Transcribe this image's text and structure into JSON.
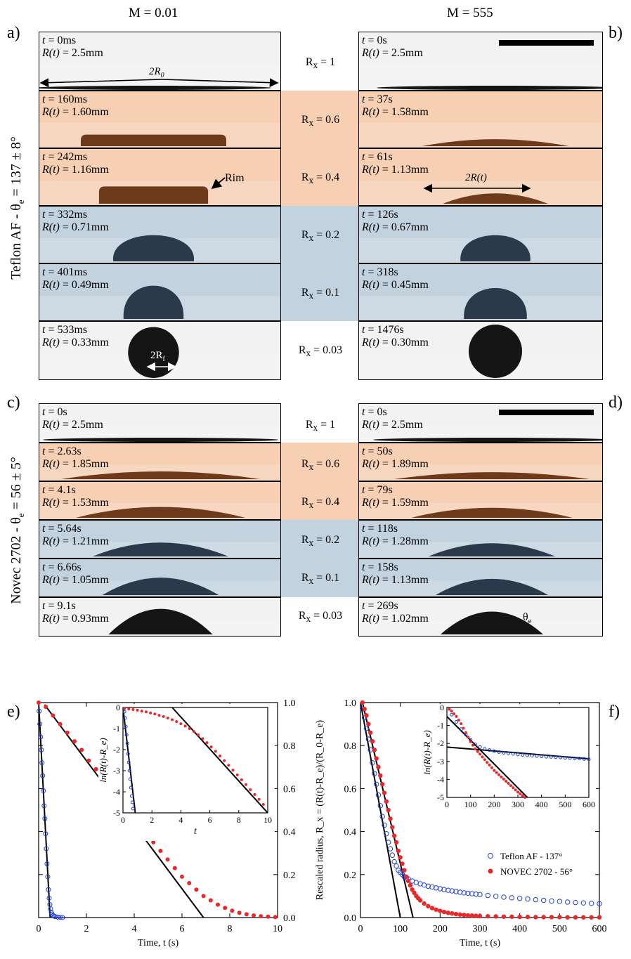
{
  "headers": {
    "left": "M = 0.01",
    "right": "M = 555"
  },
  "panel_labels": {
    "a": "a)",
    "b": "b)",
    "c": "c)",
    "d": "d)",
    "e": "e)",
    "f": "f)"
  },
  "side_labels": {
    "top": "Teflon AF - θ",
    "top_sub": "e",
    "top_tail": " = 137 ± 8°",
    "bottom": "Novec 2702 - θ",
    "bottom_sub": "e",
    "bottom_tail": " = 56 ± 5°"
  },
  "colors": {
    "orange": "#f7cfb3",
    "blue": "#c3d2df",
    "drop_orange": "#6e3a1c",
    "drop_blue": "#2a3a4a",
    "drop_dark": "#151515",
    "open_marker": "#1f3fd8",
    "filled_marker": "#e8282a"
  },
  "rx_top": [
    "R<sub>x</sub> = 1",
    "R<sub>x</sub> = 0.6",
    "R<sub>x</sub> = 0.4",
    "R<sub>x</sub> = 0.2",
    "R<sub>x</sub> = 0.1",
    "R<sub>x</sub> = 0.03"
  ],
  "rx_labels": {
    "r1": "R",
    "r1s": "x",
    "r1v": " = 1",
    "r2": "R",
    "r2s": "x",
    "r2v": " = 0.6",
    "r3": "R",
    "r3s": "x",
    "r3v": " = 0.4",
    "r4": "R",
    "r4s": "x",
    "r4v": " = 0.2",
    "r5": "R",
    "r5s": "x",
    "r5v": " = 0.1",
    "r6": "R",
    "r6s": "x",
    "r6v": " = 0.03"
  },
  "frames": {
    "a": [
      {
        "t": " = 0ms",
        "r": " = 2.5mm"
      },
      {
        "t": " = 160ms",
        "r": " = 1.60mm"
      },
      {
        "t": " = 242ms",
        "r": " = 1.16mm"
      },
      {
        "t": " = 332ms",
        "r": " = 0.71mm"
      },
      {
        "t": " = 401ms",
        "r": " = 0.49mm"
      },
      {
        "t": " = 533ms",
        "r": " = 0.33mm"
      }
    ],
    "b": [
      {
        "t": " = 0s",
        "r": " = 2.5mm"
      },
      {
        "t": " = 37s",
        "r": " = 1.58mm"
      },
      {
        "t": " = 61s",
        "r": " = 1.13mm"
      },
      {
        "t": " = 126s",
        "r": " = 0.67mm"
      },
      {
        "t": " = 318s",
        "r": " = 0.45mm"
      },
      {
        "t": " = 1476s",
        "r": " = 0.30mm"
      }
    ],
    "c": [
      {
        "t": " = 0s",
        "r": " = 2.5mm"
      },
      {
        "t": " = 2.63s",
        "r": " = 1.85mm"
      },
      {
        "t": " = 4.1s",
        "r": " = 1.53mm"
      },
      {
        "t": " = 5.64s",
        "r": " = 1.21mm"
      },
      {
        "t": " = 6.66s",
        "r": " = 1.05mm"
      },
      {
        "t": " = 9.1s",
        "r": " = 0.93mm"
      }
    ],
    "d": [
      {
        "t": " = 0s",
        "r": " = 2.5mm"
      },
      {
        "t": " = 50s",
        "r": " = 1.89mm"
      },
      {
        "t": " = 79s",
        "r": " = 1.59mm"
      },
      {
        "t": " = 118s",
        "r": " = 1.28mm"
      },
      {
        "t": " = 158s",
        "r": " = 1.13mm"
      },
      {
        "t": " = 269s",
        "r": " = 1.02mm"
      }
    ]
  },
  "frame_vars": {
    "t": "t",
    "r": "R(t)"
  },
  "annotations": {
    "two_r0": "2R",
    "two_r0_sub": "0",
    "rim": "Rim",
    "two_rt": "2R(t)",
    "two_rf": "2R",
    "two_rf_sub": "f",
    "theta": "θ",
    "theta_sub": "e"
  },
  "chart_data": [
    {
      "panel": "e",
      "type": "scatter",
      "xlabel": "Time, t (s)",
      "xlim": [
        0,
        10
      ],
      "ylim": [
        0,
        1.0
      ],
      "x_ticks": [
        0,
        2,
        4,
        6,
        8,
        10
      ],
      "y_ticks_right": [
        0.0,
        0.2,
        0.4,
        0.6,
        0.8,
        1.0
      ],
      "series": [
        {
          "marker": "open",
          "x": [
            0.02,
            0.05,
            0.08,
            0.11,
            0.14,
            0.17,
            0.2,
            0.23,
            0.26,
            0.29,
            0.32,
            0.35,
            0.38,
            0.41,
            0.44,
            0.47,
            0.5,
            0.53,
            0.56,
            0.6,
            0.65,
            0.7,
            0.8,
            0.9,
            1.0
          ],
          "y": [
            0.96,
            0.9,
            0.84,
            0.78,
            0.72,
            0.66,
            0.59,
            0.52,
            0.46,
            0.39,
            0.32,
            0.25,
            0.19,
            0.13,
            0.09,
            0.06,
            0.04,
            0.025,
            0.016,
            0.01,
            0.006,
            0.004,
            0.002,
            0.001,
            0.0
          ]
        },
        {
          "marker": "filled",
          "x": [
            0.0,
            0.3,
            0.6,
            0.9,
            1.2,
            1.5,
            1.8,
            2.1,
            2.4,
            2.7,
            3.0,
            3.3,
            3.6,
            3.9,
            4.2,
            4.5,
            4.8,
            5.1,
            5.4,
            5.7,
            6.0,
            6.3,
            6.6,
            6.9,
            7.2,
            7.5,
            7.8,
            8.1,
            8.4,
            8.7,
            9.0,
            9.3,
            9.6,
            9.9
          ],
          "y": [
            1.0,
            0.98,
            0.94,
            0.9,
            0.86,
            0.82,
            0.78,
            0.73,
            0.69,
            0.65,
            0.6,
            0.56,
            0.52,
            0.48,
            0.43,
            0.39,
            0.35,
            0.31,
            0.27,
            0.23,
            0.19,
            0.16,
            0.13,
            0.1,
            0.08,
            0.06,
            0.045,
            0.032,
            0.022,
            0.015,
            0.01,
            0.006,
            0.004,
            0.002
          ]
        }
      ],
      "fit_lines": [
        {
          "x": [
            0.0,
            0.48
          ],
          "y": [
            1.0,
            0.0
          ]
        },
        {
          "x": [
            0.25,
            6.9
          ],
          "y": [
            0.99,
            0.0
          ]
        }
      ],
      "inset": {
        "ylabel": "ln(R(t)-R_e)",
        "xlabel": "t",
        "xlim": [
          0,
          10
        ],
        "ylim": [
          -5,
          0
        ],
        "x_ticks": [
          0,
          2,
          4,
          6,
          8,
          10
        ],
        "y_ticks": [
          0,
          -1,
          -2,
          -3,
          -4,
          -5
        ],
        "series": [
          {
            "marker": "open",
            "x": [
              0.1,
              0.15,
              0.2,
              0.25,
              0.3,
              0.35,
              0.4,
              0.45,
              0.5,
              0.55,
              0.6,
              0.65,
              0.7
            ],
            "y": [
              -0.2,
              -0.5,
              -0.9,
              -1.3,
              -1.7,
              -2.2,
              -2.6,
              -3.0,
              -3.4,
              -3.8,
              -4.2,
              -4.5,
              -4.8
            ]
          },
          {
            "marker": "filled",
            "x": [
              0.1,
              0.4,
              0.7,
              1.0,
              1.3,
              1.6,
              1.9,
              2.2,
              2.5,
              2.8,
              3.1,
              3.4,
              3.7,
              4.0,
              4.3,
              4.6,
              4.9,
              5.2,
              5.5,
              5.8,
              6.1,
              6.4,
              6.7,
              7.0,
              7.3,
              7.6,
              7.9,
              8.2,
              8.5,
              8.8,
              9.1,
              9.4,
              9.7
            ],
            "y": [
              -0.05,
              -0.07,
              -0.1,
              -0.13,
              -0.17,
              -0.21,
              -0.26,
              -0.31,
              -0.37,
              -0.43,
              -0.5,
              -0.58,
              -0.67,
              -0.77,
              -0.88,
              -1.0,
              -1.14,
              -1.3,
              -1.48,
              -1.67,
              -1.87,
              -2.08,
              -2.3,
              -2.52,
              -2.74,
              -2.97,
              -3.2,
              -3.43,
              -3.66,
              -3.9,
              -4.13,
              -4.36,
              -4.6
            ]
          }
        ],
        "fit_lines": [
          {
            "x": [
              0.0,
              0.85
            ],
            "y": [
              0.0,
              -5.0
            ]
          },
          {
            "x": [
              3.4,
              10.0
            ],
            "y": [
              0.0,
              -5.0
            ]
          }
        ]
      }
    },
    {
      "panel": "f",
      "type": "scatter",
      "xlabel": "Time, t (s)",
      "ylabel": "Rescaled radius,  R_x = (R(t)-R_e)/(R_0-R_e)",
      "xlim": [
        0,
        600
      ],
      "ylim": [
        0,
        1.0
      ],
      "x_ticks": [
        0,
        100,
        200,
        300,
        400,
        500,
        600
      ],
      "y_ticks": [
        0.0,
        0.2,
        0.4,
        0.6,
        0.8,
        1.0
      ],
      "legend": "center-right",
      "series": [
        {
          "name": "Teflon AF - 137°",
          "marker": "open",
          "x": [
            5,
            10,
            15,
            20,
            25,
            30,
            35,
            40,
            45,
            50,
            55,
            60,
            65,
            70,
            75,
            80,
            85,
            90,
            95,
            100,
            105,
            110,
            115,
            120,
            130,
            140,
            150,
            160,
            170,
            180,
            190,
            200,
            210,
            220,
            230,
            240,
            250,
            260,
            270,
            280,
            290,
            300,
            320,
            340,
            360,
            380,
            400,
            420,
            440,
            460,
            480,
            500,
            520,
            540,
            560,
            580,
            600
          ],
          "y": [
            0.97,
            0.93,
            0.88,
            0.83,
            0.78,
            0.72,
            0.67,
            0.62,
            0.57,
            0.52,
            0.47,
            0.43,
            0.39,
            0.35,
            0.32,
            0.29,
            0.26,
            0.24,
            0.22,
            0.21,
            0.2,
            0.19,
            0.185,
            0.18,
            0.17,
            0.163,
            0.157,
            0.151,
            0.146,
            0.142,
            0.138,
            0.134,
            0.13,
            0.127,
            0.124,
            0.121,
            0.118,
            0.115,
            0.113,
            0.111,
            0.109,
            0.107,
            0.103,
            0.099,
            0.095,
            0.092,
            0.089,
            0.086,
            0.083,
            0.08,
            0.077,
            0.075,
            0.072,
            0.07,
            0.068,
            0.066,
            0.064
          ]
        },
        {
          "name": "NOVEC 2702 - 56°",
          "marker": "filled",
          "x": [
            5,
            10,
            15,
            20,
            25,
            30,
            35,
            40,
            45,
            50,
            55,
            60,
            65,
            70,
            75,
            80,
            85,
            90,
            95,
            100,
            105,
            110,
            115,
            120,
            125,
            130,
            135,
            140,
            145,
            150,
            160,
            170,
            180,
            190,
            200,
            210,
            220,
            230,
            240,
            250,
            260,
            270,
            280,
            290,
            300,
            320,
            340,
            360,
            380,
            400,
            420,
            440,
            460,
            480,
            500,
            520,
            540,
            560,
            580,
            600
          ],
          "y": [
            1.0,
            0.97,
            0.94,
            0.9,
            0.86,
            0.82,
            0.78,
            0.74,
            0.7,
            0.66,
            0.62,
            0.58,
            0.54,
            0.5,
            0.46,
            0.42,
            0.38,
            0.35,
            0.31,
            0.28,
            0.25,
            0.22,
            0.19,
            0.17,
            0.15,
            0.13,
            0.115,
            0.1,
            0.09,
            0.08,
            0.065,
            0.053,
            0.044,
            0.037,
            0.031,
            0.026,
            0.022,
            0.019,
            0.016,
            0.014,
            0.012,
            0.01,
            0.009,
            0.008,
            0.007,
            0.006,
            0.005,
            0.004,
            0.004,
            0.003,
            0.003,
            0.002,
            0.002,
            0.002,
            0.002,
            0.001,
            0.001,
            0.001,
            0.001,
            0.001
          ]
        }
      ],
      "fit_lines": [
        {
          "x": [
            0.0,
            100.0
          ],
          "y": [
            1.0,
            0.0
          ]
        },
        {
          "x": [
            5.0,
            132.0
          ],
          "y": [
            1.0,
            0.0
          ]
        }
      ],
      "inset": {
        "ylabel": "ln(R(t)-R_e)",
        "xlim": [
          0,
          600
        ],
        "ylim": [
          -5,
          0
        ],
        "x_ticks": [
          0,
          100,
          200,
          300,
          400,
          500,
          600
        ],
        "y_ticks": [
          0,
          -1,
          -2,
          -3,
          -4,
          -5
        ],
        "series": [
          {
            "marker": "open",
            "x": [
              20,
              40,
              60,
              80,
              100,
              120,
              140,
              160,
              180,
              200,
              220,
              240,
              260,
              280,
              300,
              320,
              340,
              360,
              380,
              400,
              420,
              440,
              460,
              480,
              500,
              520,
              540,
              560,
              580,
              600
            ],
            "y": [
              -0.4,
              -0.8,
              -1.2,
              -1.5,
              -1.8,
              -2.05,
              -2.2,
              -2.3,
              -2.37,
              -2.43,
              -2.48,
              -2.52,
              -2.55,
              -2.58,
              -2.61,
              -2.64,
              -2.66,
              -2.68,
              -2.7,
              -2.72,
              -2.74,
              -2.75,
              -2.77,
              -2.78,
              -2.8,
              -2.81,
              -2.83,
              -2.84,
              -2.86,
              -2.88
            ]
          },
          {
            "marker": "filled",
            "x": [
              10,
              20,
              30,
              40,
              50,
              60,
              70,
              80,
              90,
              100,
              110,
              120,
              130,
              140,
              150,
              160,
              170,
              180,
              190,
              200,
              210,
              220,
              230,
              240,
              250,
              260,
              270,
              280,
              290,
              300,
              310,
              320,
              330
            ],
            "y": [
              -0.1,
              -0.2,
              -0.35,
              -0.5,
              -0.7,
              -0.9,
              -1.15,
              -1.4,
              -1.65,
              -1.9,
              -2.1,
              -2.3,
              -2.45,
              -2.6,
              -2.75,
              -2.9,
              -3.05,
              -3.2,
              -3.35,
              -3.5,
              -3.62,
              -3.74,
              -3.86,
              -3.98,
              -4.1,
              -4.22,
              -4.34,
              -4.46,
              -4.58,
              -4.7,
              -4.8,
              -4.9,
              -5.0
            ]
          }
        ],
        "fit_lines": [
          {
            "x": [
              0.0,
              340.0
            ],
            "y": [
              -0.5,
              -5.0
            ]
          },
          {
            "x": [
              0.0,
              600.0
            ],
            "y": [
              -2.2,
              -2.85
            ]
          }
        ]
      }
    }
  ]
}
